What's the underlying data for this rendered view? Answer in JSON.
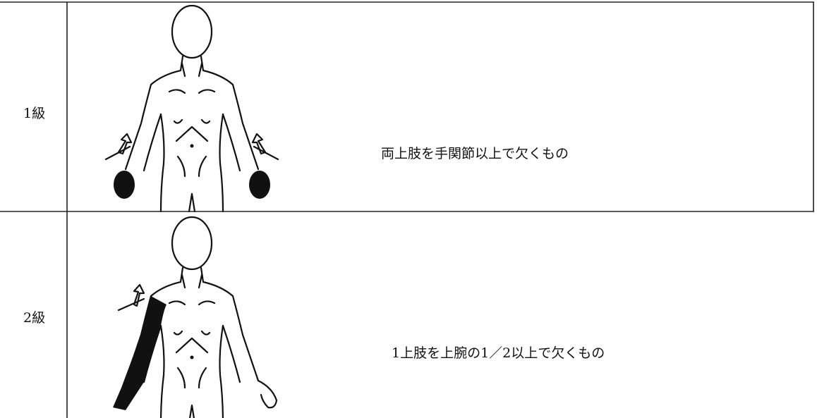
{
  "table": {
    "rows": [
      [
        "1級",
        "両上肢を手関節以上で欠くもの"
      ],
      [
        "2級",
        "1上肢を上腕の1／2以上で欠くもの"
      ]
    ]
  }
}
